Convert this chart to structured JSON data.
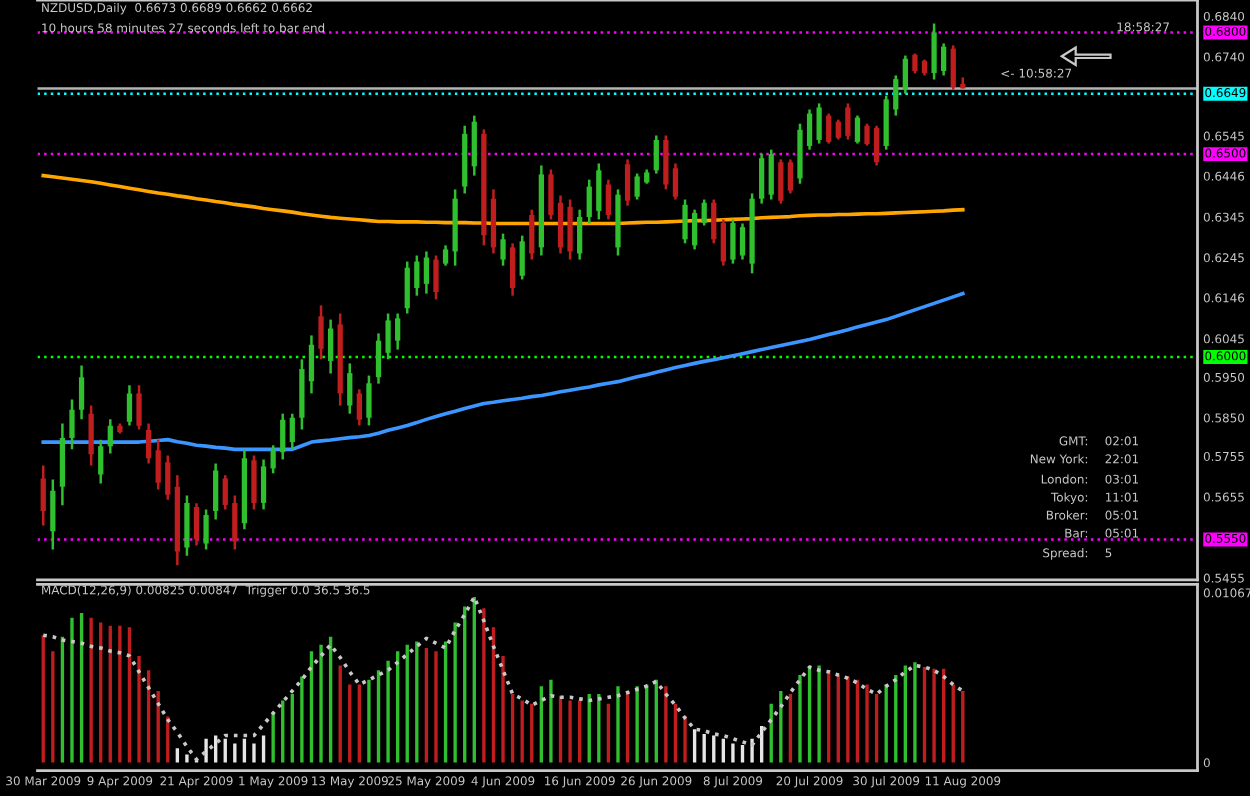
{
  "chart_data": [
    {
      "type": "candlestick",
      "title": "NZDUSD,Daily  0.6673 0.6689 0.6662 0.6662",
      "subtitle": "10 hours 58 minutes 27 seconds left to bar end",
      "categories": [
        null,
        null,
        null,
        null,
        null,
        null,
        null,
        null,
        null,
        null,
        null,
        null,
        null,
        null,
        null,
        null,
        null,
        null,
        null,
        null,
        null,
        null,
        null,
        null,
        null,
        null,
        null,
        null,
        null,
        null,
        null,
        null,
        null,
        null,
        null,
        null,
        null,
        null,
        null,
        null,
        null,
        null,
        null,
        null,
        null,
        null,
        null,
        null,
        null,
        null,
        null,
        null,
        null,
        null,
        null,
        null,
        null,
        null,
        null,
        null,
        null,
        null,
        null,
        null,
        null,
        null,
        null,
        null,
        null,
        null,
        null,
        null,
        null,
        null,
        null,
        null,
        null,
        null,
        null,
        null,
        null,
        null,
        null,
        null,
        null,
        null,
        null,
        null,
        null,
        null,
        null,
        null,
        null,
        null,
        null,
        null,
        null
      ],
      "ylim": [
        0.545,
        0.688
      ],
      "yticks": [
        {
          "value": 0.684,
          "label": "0.6840"
        },
        {
          "value": 0.674,
          "label": "0.6740"
        },
        {
          "value": 0.6545,
          "label": "0.6545"
        },
        {
          "value": 0.6446,
          "label": "0.6446"
        },
        {
          "value": 0.6345,
          "label": "0.6345"
        },
        {
          "value": 0.6245,
          "label": "0.6245"
        },
        {
          "value": 0.6146,
          "label": "0.6146"
        },
        {
          "value": 0.6045,
          "label": "0.6045"
        },
        {
          "value": 0.595,
          "label": "0.5950"
        },
        {
          "value": 0.585,
          "label": "0.5850"
        },
        {
          "value": 0.5755,
          "label": "0.5755"
        },
        {
          "value": 0.5655,
          "label": "0.5655"
        },
        {
          "value": 0.5455,
          "label": "0.5455"
        }
      ],
      "tick_labels": "y",
      "ref_lines": [
        {
          "axis": "y",
          "value": 0.68,
          "label": "0.6800",
          "color": "#ff00ff",
          "line_style": "dotted"
        },
        {
          "axis": "y",
          "value": 0.6662,
          "label": null,
          "color": "#b4b4b4",
          "line_style": "solid"
        },
        {
          "axis": "y",
          "value": 0.6649,
          "label": "0.6649",
          "color": "#00ffff",
          "line_style": "dotted"
        },
        {
          "axis": "y",
          "value": 0.65,
          "label": "0.6500",
          "color": "#ff00ff",
          "line_style": "dotted"
        },
        {
          "axis": "y",
          "value": 0.6,
          "label": "0.6000",
          "color": "#00ff00",
          "line_style": "dotted"
        },
        {
          "axis": "y",
          "value": 0.555,
          "label": "0.5550",
          "color": "#ff00ff",
          "line_style": "dotted"
        }
      ],
      "annotations": [
        "18:58:27",
        "<- 10:58:27",
        "GMT:  02:01",
        "New York:  22:01",
        "London:  03:01",
        "Tokyo:  11:01",
        "Broker:  05:01",
        "Bar:  05:01",
        "Spread:  5"
      ],
      "series": [
        {
          "type": "line",
          "color": "#ffa500",
          "values": [
            0.6447,
            0.6444,
            0.6441,
            0.6438,
            0.6435,
            0.6432,
            0.6428,
            0.6424,
            0.642,
            0.6416,
            0.6412,
            0.6408,
            0.6404,
            0.6401,
            0.6397,
            0.6394,
            0.639,
            0.6387,
            0.6383,
            0.638,
            0.6376,
            0.6373,
            0.637,
            0.6366,
            0.6363,
            0.636,
            0.6357,
            0.6353,
            0.635,
            0.6347,
            0.6344,
            0.6342,
            0.634,
            0.6338,
            0.6336,
            0.6334,
            0.6334,
            0.6333,
            0.6333,
            0.6333,
            0.6332,
            0.6332,
            0.6331,
            0.6331,
            0.6331,
            0.633,
            0.633,
            0.6329,
            0.6329,
            0.6329,
            0.6329,
            0.6329,
            0.6329,
            0.6329,
            0.6329,
            0.6329,
            0.6329,
            0.6329,
            0.6329,
            0.6329,
            0.6329,
            0.633,
            0.6331,
            0.6332,
            0.6332,
            0.6333,
            0.6334,
            0.6335,
            0.6336,
            0.6336,
            0.6337,
            0.6338,
            0.6339,
            0.634,
            0.6341,
            0.6343,
            0.6344,
            0.6345,
            0.6346,
            0.6348,
            0.6349,
            0.635,
            0.635,
            0.6351,
            0.6351,
            0.6352,
            0.6353,
            0.6353,
            0.6354,
            0.6355,
            0.6356,
            0.6357,
            0.6358,
            0.6359,
            0.636,
            0.6362,
            0.6363
          ]
        },
        {
          "type": "line",
          "color": "#3c96ff",
          "values": [
            0.579,
            0.579,
            0.579,
            0.579,
            0.579,
            0.579,
            0.579,
            0.579,
            0.579,
            0.579,
            0.579,
            0.5792,
            0.5794,
            0.5796,
            0.5791,
            0.5787,
            0.5782,
            0.578,
            0.5777,
            0.5775,
            0.5772,
            0.5772,
            0.5772,
            0.5772,
            0.5772,
            0.5772,
            0.5772,
            0.5781,
            0.579,
            0.5793,
            0.5795,
            0.5798,
            0.5801,
            0.5803,
            0.5806,
            0.5812,
            0.5819,
            0.5825,
            0.5831,
            0.5838,
            0.5846,
            0.5853,
            0.586,
            0.5866,
            0.5873,
            0.5879,
            0.5885,
            0.5888,
            0.5892,
            0.5895,
            0.5898,
            0.5902,
            0.5905,
            0.5909,
            0.5914,
            0.5918,
            0.5922,
            0.5926,
            0.5931,
            0.5935,
            0.5939,
            0.5945,
            0.5951,
            0.5956,
            0.5962,
            0.5968,
            0.5974,
            0.5979,
            0.5984,
            0.5989,
            0.5993,
            0.5998,
            0.6003,
            0.6008,
            0.6013,
            0.6018,
            0.6023,
            0.6028,
            0.6033,
            0.6038,
            0.6043,
            0.6049,
            0.6055,
            0.6061,
            0.6067,
            0.6074,
            0.608,
            0.6086,
            0.6092,
            0.61,
            0.6108,
            0.6116,
            0.6124,
            0.6132,
            0.614,
            0.6148,
            0.6156
          ]
        },
        {
          "type": "candlestick",
          "ohlc": [
            [
              0.57,
              0.5732,
              0.5584,
              0.562
            ],
            [
              0.557,
              0.5698,
              0.5525,
              0.567
            ],
            [
              0.568,
              0.5836,
              0.5634,
              0.58
            ],
            [
              0.58,
              0.5895,
              0.5772,
              0.587
            ],
            [
              0.587,
              0.5979,
              0.5846,
              0.595
            ],
            [
              0.586,
              0.588,
              0.5732,
              0.576
            ],
            [
              0.571,
              0.5796,
              0.5688,
              0.578
            ],
            [
              0.578,
              0.5846,
              0.5762,
              0.583
            ],
            [
              0.583,
              0.5836,
              0.5811,
              0.5815
            ],
            [
              0.584,
              0.593,
              0.5831,
              0.591
            ],
            [
              0.591,
              0.593,
              0.5821,
              0.583
            ],
            [
              0.582,
              0.5836,
              0.5737,
              0.575
            ],
            [
              0.577,
              0.5796,
              0.5673,
              0.569
            ],
            [
              0.574,
              0.5757,
              0.5648,
              0.566
            ],
            [
              0.568,
              0.5708,
              0.5486,
              0.552
            ],
            [
              0.553,
              0.5658,
              0.551,
              0.564
            ],
            [
              0.563,
              0.5639,
              0.5535,
              0.555
            ],
            [
              0.554,
              0.5624,
              0.5525,
              0.561
            ],
            [
              0.562,
              0.5737,
              0.5599,
              0.572
            ],
            [
              0.57,
              0.5708,
              0.5624,
              0.5635
            ],
            [
              0.564,
              0.5658,
              0.5525,
              0.5545
            ],
            [
              0.559,
              0.5772,
              0.5575,
              0.575
            ],
            [
              0.5745,
              0.5757,
              0.5624,
              0.564
            ],
            [
              0.564,
              0.5747,
              0.5624,
              0.573
            ],
            [
              0.5725,
              0.5782,
              0.5713,
              0.577
            ],
            [
              0.5765,
              0.586,
              0.5747,
              0.5845
            ],
            [
              0.579,
              0.586,
              0.5772,
              0.585
            ],
            [
              0.585,
              0.5994,
              0.5821,
              0.597
            ],
            [
              0.594,
              0.6053,
              0.591,
              0.603
            ],
            [
              0.61,
              0.6127,
              0.5994,
              0.602
            ],
            [
              0.599,
              0.6092,
              0.5959,
              0.607
            ],
            [
              0.608,
              0.6107,
              0.588,
              0.591
            ],
            [
              0.588,
              0.5984,
              0.586,
              0.596
            ],
            [
              0.591,
              0.592,
              0.5831,
              0.5845
            ],
            [
              0.585,
              0.5954,
              0.5831,
              0.5935
            ],
            [
              0.595,
              0.6058,
              0.5934,
              0.604
            ],
            [
              0.601,
              0.6107,
              0.5994,
              0.609
            ],
            [
              0.604,
              0.6107,
              0.6018,
              0.6095
            ],
            [
              0.612,
              0.6235,
              0.6107,
              0.622
            ],
            [
              0.617,
              0.625,
              0.6151,
              0.6235
            ],
            [
              0.618,
              0.626,
              0.6156,
              0.6245
            ],
            [
              0.624,
              0.625,
              0.6142,
              0.616
            ],
            [
              0.623,
              0.6275,
              0.6225,
              0.6265
            ],
            [
              0.626,
              0.6413,
              0.6225,
              0.639
            ],
            [
              0.642,
              0.657,
              0.6403,
              0.655
            ],
            [
              0.647,
              0.6595,
              0.6447,
              0.658
            ],
            [
              0.655,
              0.6561,
              0.6275,
              0.63
            ],
            [
              0.639,
              0.6413,
              0.6255,
              0.627
            ],
            [
              0.624,
              0.6304,
              0.6225,
              0.629
            ],
            [
              0.627,
              0.628,
              0.6151,
              0.617
            ],
            [
              0.62,
              0.6299,
              0.6191,
              0.6285
            ],
            [
              0.635,
              0.6363,
              0.624,
              0.6255
            ],
            [
              0.627,
              0.6472,
              0.625,
              0.645
            ],
            [
              0.645,
              0.6462,
              0.6339,
              0.635
            ],
            [
              0.638,
              0.6398,
              0.6255,
              0.627
            ],
            [
              0.637,
              0.6388,
              0.624,
              0.626
            ],
            [
              0.6255,
              0.6363,
              0.624,
              0.6345
            ],
            [
              0.6345,
              0.6437,
              0.6329,
              0.642
            ],
            [
              0.636,
              0.6477,
              0.6339,
              0.646
            ],
            [
              0.6425,
              0.6437,
              0.6339,
              0.635
            ],
            [
              0.627,
              0.6413,
              0.625,
              0.64
            ],
            [
              0.6475,
              0.6487,
              0.6373,
              0.6385
            ],
            [
              0.6395,
              0.6452,
              0.6388,
              0.6445
            ],
            [
              0.643,
              0.6462,
              0.6427,
              0.6455
            ],
            [
              0.646,
              0.6546,
              0.6452,
              0.6535
            ],
            [
              0.6535,
              0.6546,
              0.6413,
              0.6425
            ],
            [
              0.6465,
              0.6477,
              0.6388,
              0.6395
            ],
            [
              0.629,
              0.6388,
              0.628,
              0.6375
            ],
            [
              0.6275,
              0.6363,
              0.6265,
              0.6355
            ],
            [
              0.633,
              0.6388,
              0.6324,
              0.638
            ],
            [
              0.638,
              0.6388,
              0.628,
              0.629
            ],
            [
              0.633,
              0.6339,
              0.6225,
              0.6235
            ],
            [
              0.624,
              0.6339,
              0.623,
              0.633
            ],
            [
              0.625,
              0.6329,
              0.624,
              0.632
            ],
            [
              0.623,
              0.6403,
              0.6206,
              0.639
            ],
            [
              0.639,
              0.6501,
              0.6378,
              0.649
            ],
            [
              0.64,
              0.6511,
              0.6388,
              0.65
            ],
            [
              0.648,
              0.6487,
              0.6378,
              0.6385
            ],
            [
              0.648,
              0.6487,
              0.6403,
              0.641
            ],
            [
              0.644,
              0.6575,
              0.6427,
              0.656
            ],
            [
              0.652,
              0.661,
              0.6511,
              0.66
            ],
            [
              0.6535,
              0.6625,
              0.6526,
              0.6615
            ],
            [
              0.6595,
              0.66,
              0.6526,
              0.653
            ],
            [
              0.658,
              0.6585,
              0.6536,
              0.654
            ],
            [
              0.6615,
              0.6625,
              0.6536,
              0.6545
            ],
            [
              0.653,
              0.6595,
              0.6526,
              0.659
            ],
            [
              0.657,
              0.6575,
              0.6521,
              0.6525
            ],
            [
              0.6565,
              0.657,
              0.6472,
              0.648
            ],
            [
              0.652,
              0.6644,
              0.6511,
              0.6635
            ],
            [
              0.661,
              0.6694,
              0.6595,
              0.6685
            ],
            [
              0.666,
              0.6743,
              0.6649,
              0.6735
            ],
            [
              0.6745,
              0.6748,
              0.6699,
              0.6705
            ],
            [
              0.673,
              0.6733,
              0.6694,
              0.67
            ],
            [
              0.67,
              0.6822,
              0.6684,
              0.68
            ],
            [
              0.6705,
              0.6773,
              0.6694,
              0.6765
            ],
            [
              0.676,
              0.6768,
              0.6659,
              0.6665
            ],
            [
              0.6673,
              0.6689,
              0.6662,
              0.6662
            ]
          ],
          "colors": [
            "#c01e1e",
            "#2fbf2f",
            "#2fbf2f",
            "#2fbf2f",
            "#2fbf2f",
            "#c01e1e",
            "#2fbf2f",
            "#2fbf2f",
            "#c01e1e",
            "#2fbf2f",
            "#c01e1e",
            "#c01e1e",
            "#c01e1e",
            "#c01e1e",
            "#c01e1e",
            "#2fbf2f",
            "#c01e1e",
            "#2fbf2f",
            "#2fbf2f",
            "#c01e1e",
            "#c01e1e",
            "#2fbf2f",
            "#c01e1e",
            "#2fbf2f",
            "#2fbf2f",
            "#2fbf2f",
            "#2fbf2f",
            "#2fbf2f",
            "#2fbf2f",
            "#c01e1e",
            "#2fbf2f",
            "#c01e1e",
            "#2fbf2f",
            "#c01e1e",
            "#2fbf2f",
            "#2fbf2f",
            "#2fbf2f",
            "#2fbf2f",
            "#2fbf2f",
            "#2fbf2f",
            "#2fbf2f",
            "#c01e1e",
            "#2fbf2f",
            "#2fbf2f",
            "#2fbf2f",
            "#2fbf2f",
            "#c01e1e",
            "#c01e1e",
            "#2fbf2f",
            "#c01e1e",
            "#2fbf2f",
            "#c01e1e",
            "#2fbf2f",
            "#c01e1e",
            "#c01e1e",
            "#c01e1e",
            "#2fbf2f",
            "#2fbf2f",
            "#2fbf2f",
            "#c01e1e",
            "#2fbf2f",
            "#c01e1e",
            "#2fbf2f",
            "#2fbf2f",
            "#2fbf2f",
            "#c01e1e",
            "#c01e1e",
            "#2fbf2f",
            "#2fbf2f",
            "#2fbf2f",
            "#c01e1e",
            "#c01e1e",
            "#2fbf2f",
            "#2fbf2f",
            "#2fbf2f",
            "#2fbf2f",
            "#2fbf2f",
            "#c01e1e",
            "#c01e1e",
            "#2fbf2f",
            "#2fbf2f",
            "#2fbf2f",
            "#c01e1e",
            "#c01e1e",
            "#c01e1e",
            "#2fbf2f",
            "#c01e1e",
            "#c01e1e",
            "#2fbf2f",
            "#2fbf2f",
            "#2fbf2f",
            "#c01e1e",
            "#c01e1e",
            "#2fbf2f",
            "#2fbf2f",
            "#c01e1e",
            "#c01e1e"
          ]
        }
      ]
    },
    {
      "type": "bar",
      "title": "MACD(12,26,9) 0.00825 0.00847  Trigger 0.0 36.5 36.5",
      "categories": [
        "30 Mar 2009",
        null,
        null,
        null,
        null,
        null,
        null,
        null,
        "9 Apr 2009",
        null,
        null,
        null,
        null,
        null,
        null,
        null,
        "21 Apr 2009",
        null,
        null,
        null,
        null,
        null,
        null,
        null,
        "1 May 2009",
        null,
        null,
        null,
        null,
        null,
        null,
        null,
        "13 May 2009",
        null,
        null,
        null,
        null,
        null,
        null,
        null,
        "25 May 2009",
        null,
        null,
        null,
        null,
        null,
        null,
        null,
        "4 Jun 2009",
        null,
        null,
        null,
        null,
        null,
        null,
        null,
        "16 Jun 2009",
        null,
        null,
        null,
        null,
        null,
        null,
        null,
        "26 Jun 2009",
        null,
        null,
        null,
        null,
        null,
        null,
        null,
        "8 Jul 2009",
        null,
        null,
        null,
        null,
        null,
        null,
        null,
        "20 Jul 2009",
        null,
        null,
        null,
        null,
        null,
        null,
        null,
        "30 Jul 2009",
        null,
        null,
        null,
        null,
        null,
        null,
        null,
        "11 Aug 2009"
      ],
      "ylim": [
        -0.0005,
        0.0112
      ],
      "yticks": [
        {
          "value": 0.01067,
          "label": "0.01067"
        },
        0
      ],
      "series": [
        {
          "type": "bar",
          "values": [
            0.008,
            0.007,
            0.0079,
            0.0091,
            0.0094,
            0.0091,
            0.0088,
            0.0086,
            0.0086,
            0.0085,
            0.0067,
            0.0058,
            0.0045,
            0.0029,
            0.0009,
            0.0005,
            0.0002,
            0.0015,
            0.0017,
            0.0015,
            0.0012,
            0.0015,
            0.0012,
            0.0017,
            0.0031,
            0.0039,
            0.0043,
            0.0054,
            0.007,
            0.0074,
            0.0079,
            0.0061,
            0.0049,
            0.0049,
            0.0052,
            0.0058,
            0.0064,
            0.007,
            0.0074,
            0.0076,
            0.0072,
            0.007,
            0.0076,
            0.0088,
            0.0098,
            0.0104,
            0.0097,
            0.0085,
            0.0067,
            0.0043,
            0.0039,
            0.0037,
            0.0048,
            0.0052,
            0.0042,
            0.0039,
            0.0039,
            0.0043,
            0.0043,
            0.0037,
            0.0048,
            0.0045,
            0.0048,
            0.0049,
            0.0052,
            0.0048,
            0.0037,
            0.0029,
            0.0021,
            0.0018,
            0.0017,
            0.0015,
            0.0012,
            0.0011,
            0.0015,
            0.0023,
            0.0037,
            0.0045,
            0.0043,
            0.0055,
            0.006,
            0.0061,
            0.0058,
            0.0055,
            0.0054,
            0.0052,
            0.0049,
            0.0043,
            0.0049,
            0.0055,
            0.0061,
            0.0063,
            0.006,
            0.0059,
            0.0059,
            0.0049,
            0.0045
          ],
          "colors": [
            "#c01e1e",
            "#c01e1e",
            "#2fbf2f",
            "#2fbf2f",
            "#2fbf2f",
            "#c01e1e",
            "#c01e1e",
            "#c01e1e",
            "#c01e1e",
            "#c01e1e",
            "#c01e1e",
            "#c01e1e",
            "#c01e1e",
            "#c01e1e",
            "#e6e6e6",
            "#e6e6e6",
            "#e6e6e6",
            "#e6e6e6",
            "#e6e6e6",
            "#e6e6e6",
            "#e6e6e6",
            "#e6e6e6",
            "#e6e6e6",
            "#e6e6e6",
            "#2fbf2f",
            "#2fbf2f",
            "#2fbf2f",
            "#2fbf2f",
            "#2fbf2f",
            "#2fbf2f",
            "#2fbf2f",
            "#c01e1e",
            "#c01e1e",
            "#c01e1e",
            "#2fbf2f",
            "#2fbf2f",
            "#2fbf2f",
            "#2fbf2f",
            "#2fbf2f",
            "#2fbf2f",
            "#c01e1e",
            "#c01e1e",
            "#2fbf2f",
            "#2fbf2f",
            "#2fbf2f",
            "#2fbf2f",
            "#c01e1e",
            "#c01e1e",
            "#c01e1e",
            "#c01e1e",
            "#c01e1e",
            "#c01e1e",
            "#2fbf2f",
            "#2fbf2f",
            "#c01e1e",
            "#c01e1e",
            "#c01e1e",
            "#2fbf2f",
            "#2fbf2f",
            "#c01e1e",
            "#2fbf2f",
            "#c01e1e",
            "#2fbf2f",
            "#2fbf2f",
            "#2fbf2f",
            "#c01e1e",
            "#c01e1e",
            "#c01e1e",
            "#e6e6e6",
            "#e6e6e6",
            "#e6e6e6",
            "#e6e6e6",
            "#e6e6e6",
            "#e6e6e6",
            "#e6e6e6",
            "#e6e6e6",
            "#2fbf2f",
            "#2fbf2f",
            "#c01e1e",
            "#2fbf2f",
            "#2fbf2f",
            "#2fbf2f",
            "#c01e1e",
            "#c01e1e",
            "#c01e1e",
            "#c01e1e",
            "#c01e1e",
            "#c01e1e",
            "#2fbf2f",
            "#2fbf2f",
            "#2fbf2f",
            "#2fbf2f",
            "#c01e1e",
            "#c01e1e",
            "#c01e1e",
            "#c01e1e",
            "#c01e1e"
          ]
        },
        {
          "type": "line",
          "color": "#c8c8c8",
          "line_style": "dotted",
          "values": [
            0.008,
            0.0079,
            0.0077,
            0.0076,
            0.0075,
            0.0073,
            0.0072,
            0.007,
            0.0069,
            0.0067,
            0.0057,
            0.0047,
            0.0037,
            0.0027,
            0.0019,
            0.001,
            0.0002,
            0.0007,
            0.0012,
            0.0017,
            0.0017,
            0.0017,
            0.0017,
            0.0024,
            0.0031,
            0.0038,
            0.0045,
            0.0052,
            0.006,
            0.0067,
            0.0074,
            0.0066,
            0.0057,
            0.0049,
            0.0052,
            0.0055,
            0.0058,
            0.0063,
            0.0068,
            0.0073,
            0.0078,
            0.0075,
            0.0072,
            0.0083,
            0.0093,
            0.0104,
            0.0089,
            0.0073,
            0.0058,
            0.0043,
            0.004,
            0.0036,
            0.0039,
            0.0042,
            0.0041,
            0.0041,
            0.004,
            0.0039,
            0.004,
            0.0041,
            0.0042,
            0.0044,
            0.0046,
            0.0048,
            0.0051,
            0.0043,
            0.0036,
            0.0028,
            0.0021,
            0.002,
            0.0018,
            0.0017,
            0.0015,
            0.0013,
            0.0011,
            0.0019,
            0.0027,
            0.0035,
            0.0044,
            0.0052,
            0.006,
            0.0058,
            0.0057,
            0.0055,
            0.0053,
            0.005,
            0.0046,
            0.0043,
            0.0048,
            0.0052,
            0.0057,
            0.0061,
            0.006,
            0.0058,
            0.0054,
            0.0049,
            0.0045
          ]
        }
      ]
    }
  ]
}
